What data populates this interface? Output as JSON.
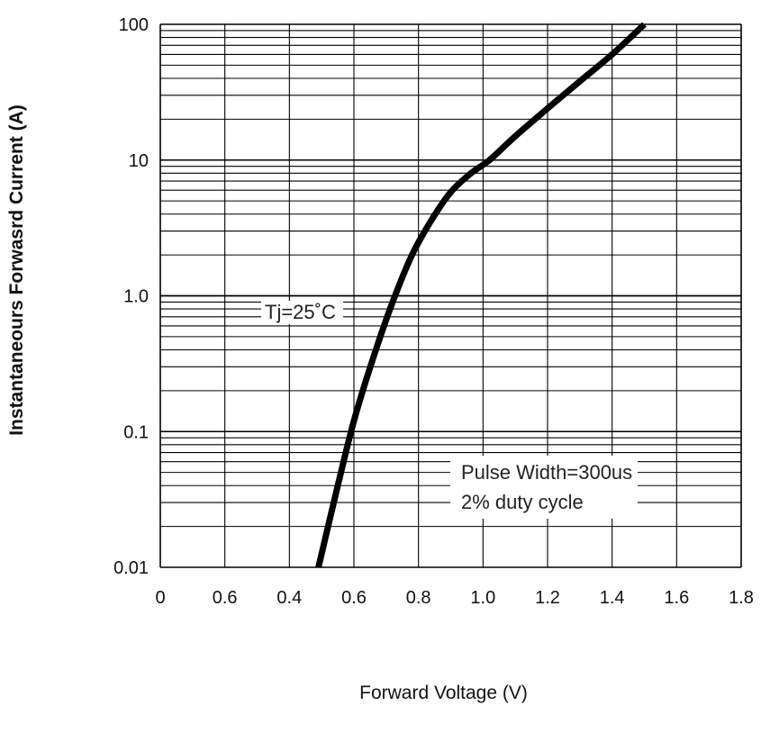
{
  "chart_data": {
    "type": "line",
    "title": "",
    "xlabel": "Forward Voltage (V)",
    "ylabel": "Instantaneours Forwasrd Current (A)",
    "y_scale": "log",
    "xlim": [
      0,
      1.8
    ],
    "ylim": [
      0.01,
      100
    ],
    "x_tick_labels": [
      "0",
      "0.6",
      "0.4",
      "0.6",
      "0.8",
      "1.0",
      "1.2",
      "1.4",
      "1.6",
      "1.8"
    ],
    "y_tick_labels": [
      "100",
      "10",
      "1.0",
      "0.1",
      "0.01"
    ],
    "grid": true,
    "annotations": {
      "temperature": "Tj=25˚C",
      "pulse_line1": "Pulse Width=300us",
      "pulse_line2": "2% duty cycle"
    },
    "series": [
      {
        "x": [
          0.49,
          0.55,
          0.6,
          0.66,
          0.72,
          0.78,
          0.84,
          0.9,
          0.96,
          1.02,
          1.1,
          1.2,
          1.3,
          1.4,
          1.5
        ],
        "y": [
          0.01,
          0.04,
          0.12,
          0.35,
          0.9,
          2.0,
          3.6,
          5.8,
          7.9,
          10.0,
          15.0,
          24.0,
          38.0,
          60.0,
          100.0
        ]
      }
    ],
    "line_color": "#000000"
  }
}
